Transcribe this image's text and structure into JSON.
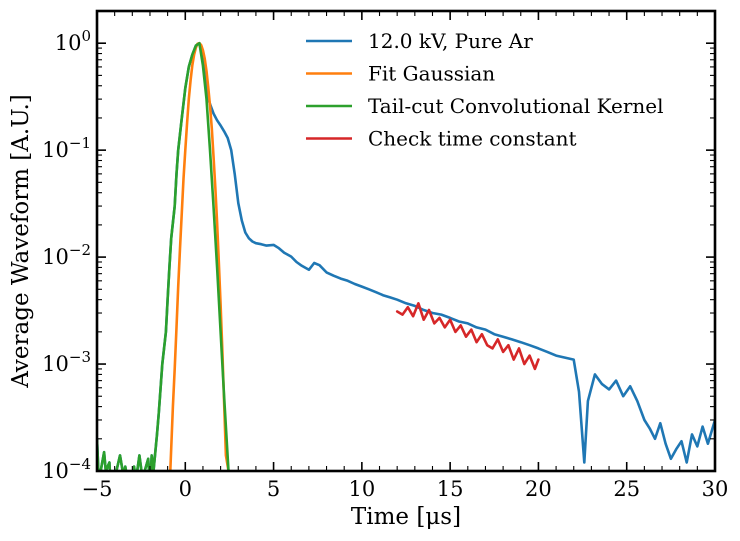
{
  "chart_data": {
    "type": "line",
    "title": "",
    "xlabel": "Time [μs]",
    "ylabel": "Average Waveform [A.U.]",
    "xlim": [
      -5,
      30
    ],
    "ylim": [
      0.0001,
      2
    ],
    "yscale": "log",
    "x_ticks": [
      -5,
      0,
      5,
      10,
      15,
      20,
      25,
      30
    ],
    "x_tick_labels": [
      "−5",
      "0",
      "5",
      "10",
      "15",
      "20",
      "25",
      "30"
    ],
    "y_ticks": [
      0.0001,
      0.001,
      0.01,
      0.1,
      1
    ],
    "y_tick_labels": [
      {
        "base": "10",
        "exp": "−4"
      },
      {
        "base": "10",
        "exp": "−3"
      },
      {
        "base": "10",
        "exp": "−2"
      },
      {
        "base": "10",
        "exp": "−1"
      },
      {
        "base": "10",
        "exp": "0"
      }
    ],
    "grid": false,
    "legend_position": "top-right",
    "series": [
      {
        "name": "12.0 kV, Pure Ar",
        "color": "#1f77b4",
        "x": [
          -5,
          -4.9,
          -4.6,
          -4.5,
          -4.3,
          -4.2,
          -4.0,
          -3.9,
          -3.7,
          -3.5,
          -3.4,
          -3.2,
          -3.0,
          -2.9,
          -2.8,
          -2.6,
          -2.4,
          -2.3,
          -2.1,
          -2.0,
          -1.9,
          -1.8,
          -1.6,
          -1.5,
          -1.4,
          -1.3,
          -1.1,
          -1.0,
          -0.9,
          -0.8,
          -0.6,
          -0.5,
          -0.4,
          -0.2,
          0.0,
          0.2,
          0.4,
          0.6,
          0.8,
          1.0,
          1.2,
          1.4,
          1.6,
          1.8,
          2.0,
          2.2,
          2.4,
          2.6,
          2.8,
          3.0,
          3.2,
          3.4,
          3.6,
          3.8,
          4.0,
          4.3,
          4.6,
          5.0,
          5.3,
          5.6,
          6.0,
          6.3,
          6.6,
          7.0,
          7.3,
          7.6,
          8.0,
          8.4,
          8.8,
          9.2,
          9.6,
          10.0,
          10.4,
          10.8,
          11.2,
          11.6,
          12.0,
          12.5,
          13.0,
          13.5,
          14.0,
          14.5,
          15.0,
          15.5,
          16.0,
          16.5,
          17.0,
          17.5,
          18.0,
          18.5,
          19.0,
          19.5,
          20.0,
          20.5,
          21.0,
          21.5,
          22.0,
          22.3,
          22.6,
          22.8,
          23.2,
          23.6,
          24.0,
          24.4,
          24.8,
          25.2,
          25.6,
          26.0,
          26.3,
          26.6,
          26.9,
          27.2,
          27.5,
          27.8,
          28.1,
          28.4,
          28.7,
          29.0,
          29.3,
          29.6,
          30.0
        ],
        "y": [
          0.0002,
          8e-05,
          0.00015,
          0.0001,
          0.00012,
          6e-05,
          7e-05,
          0.0001,
          0.00014,
          9e-05,
          0.00011,
          7e-05,
          5e-05,
          0.00011,
          8e-05,
          0.00014,
          8e-05,
          0.0001,
          0.00013,
          7e-05,
          0.00014,
          0.0001,
          0.00022,
          0.00035,
          0.0006,
          0.001,
          0.002,
          0.004,
          0.008,
          0.015,
          0.03,
          0.06,
          0.1,
          0.2,
          0.38,
          0.6,
          0.78,
          0.95,
          1.0,
          0.7,
          0.35,
          0.27,
          0.22,
          0.19,
          0.17,
          0.15,
          0.13,
          0.1,
          0.06,
          0.032,
          0.022,
          0.017,
          0.015,
          0.014,
          0.0135,
          0.0132,
          0.0128,
          0.013,
          0.0121,
          0.011,
          0.0101,
          0.009,
          0.0083,
          0.0076,
          0.0088,
          0.0084,
          0.0072,
          0.0067,
          0.0063,
          0.006,
          0.0056,
          0.0053,
          0.005,
          0.0047,
          0.0044,
          0.0042,
          0.004,
          0.0037,
          0.0035,
          0.0032,
          0.003,
          0.0029,
          0.0027,
          0.0025,
          0.0024,
          0.0022,
          0.0021,
          0.0019,
          0.0018,
          0.0017,
          0.0016,
          0.0015,
          0.0014,
          0.0013,
          0.0012,
          0.00115,
          0.0011,
          0.00055,
          0.00012,
          0.00045,
          0.0008,
          0.00065,
          0.00058,
          0.0007,
          0.0005,
          0.00062,
          0.00045,
          0.0003,
          0.00025,
          0.0002,
          0.00028,
          0.00018,
          0.00013,
          0.00016,
          0.00019,
          0.00012,
          0.00022,
          0.00017,
          0.00026,
          0.00018,
          0.0003
        ]
      },
      {
        "name": "Fit Gaussian",
        "color": "#ff7f0e",
        "x": [
          -0.85,
          -0.7,
          -0.6,
          -0.5,
          -0.4,
          -0.3,
          -0.2,
          -0.1,
          0.0,
          0.1,
          0.2,
          0.3,
          0.4,
          0.5,
          0.6,
          0.7,
          0.8,
          0.9,
          1.0,
          1.1,
          1.2,
          1.3,
          1.4,
          1.5,
          1.6,
          1.7,
          1.8,
          1.9,
          2.0,
          2.1,
          2.2,
          2.3,
          2.45
        ],
        "y": [
          0.0001,
          0.0004,
          0.0009,
          0.0022,
          0.0053,
          0.012,
          0.026,
          0.054,
          0.1,
          0.18,
          0.3,
          0.45,
          0.62,
          0.78,
          0.91,
          0.99,
          1.0,
          0.96,
          0.86,
          0.72,
          0.55,
          0.39,
          0.26,
          0.16,
          0.088,
          0.045,
          0.021,
          0.0091,
          0.0036,
          0.0013,
          0.00044,
          0.00014,
          0.0001
        ]
      },
      {
        "name": "Tail-cut Convolutional Kernel",
        "color": "#2ca02c",
        "x": [
          -5,
          -4.9,
          -4.6,
          -4.5,
          -4.3,
          -4.2,
          -4.0,
          -3.9,
          -3.7,
          -3.5,
          -3.4,
          -3.2,
          -3.0,
          -2.9,
          -2.8,
          -2.6,
          -2.4,
          -2.3,
          -2.1,
          -2.0,
          -1.9,
          -1.8,
          -1.6,
          -1.5,
          -1.4,
          -1.3,
          -1.1,
          -1.0,
          -0.9,
          -0.8,
          -0.6,
          -0.5,
          -0.4,
          -0.2,
          0.0,
          0.2,
          0.4,
          0.6,
          0.8,
          1.0,
          1.2,
          1.4,
          1.6,
          1.8,
          2.0,
          2.2,
          2.45
        ],
        "y": [
          0.0002,
          8e-05,
          0.00015,
          0.0001,
          0.00012,
          6e-05,
          7e-05,
          0.0001,
          0.00014,
          9e-05,
          0.00011,
          7e-05,
          5e-05,
          0.00011,
          8e-05,
          0.00014,
          8e-05,
          0.0001,
          0.00013,
          7e-05,
          0.00014,
          0.0001,
          0.00022,
          0.00035,
          0.0006,
          0.001,
          0.002,
          0.004,
          0.008,
          0.015,
          0.03,
          0.06,
          0.1,
          0.2,
          0.38,
          0.6,
          0.78,
          0.95,
          1.0,
          0.62,
          0.3,
          0.1,
          0.03,
          0.008,
          0.002,
          0.0005,
          0.0001
        ]
      },
      {
        "name": "Check time constant",
        "color": "#d62728",
        "x": [
          12.0,
          12.3,
          12.6,
          12.9,
          13.2,
          13.5,
          13.8,
          14.1,
          14.4,
          14.7,
          15.0,
          15.3,
          15.6,
          15.9,
          16.2,
          16.5,
          16.8,
          17.1,
          17.4,
          17.7,
          18.0,
          18.3,
          18.6,
          18.9,
          19.2,
          19.5,
          19.8,
          20.0
        ],
        "y": [
          0.0031,
          0.0029,
          0.0034,
          0.0028,
          0.0037,
          0.0026,
          0.0032,
          0.0024,
          0.0027,
          0.0022,
          0.0026,
          0.002,
          0.0023,
          0.0018,
          0.0021,
          0.0016,
          0.0019,
          0.0015,
          0.0014,
          0.0017,
          0.0013,
          0.0015,
          0.0011,
          0.0014,
          0.001,
          0.0012,
          0.0009,
          0.0011
        ]
      }
    ]
  }
}
